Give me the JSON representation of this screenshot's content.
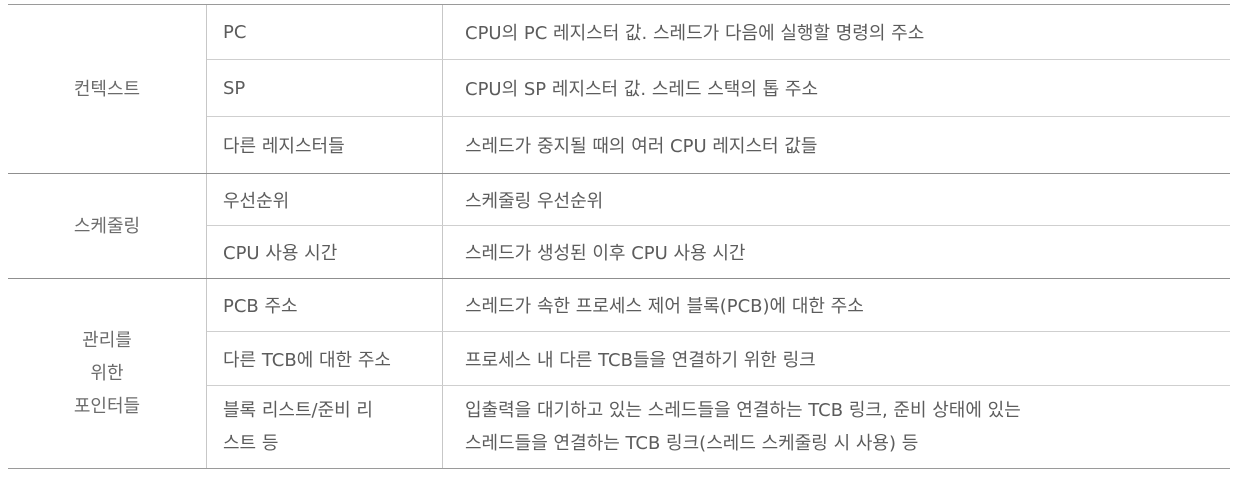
{
  "table": {
    "groups": [
      {
        "label": "컨텍스트",
        "rows": [
          {
            "field": "PC",
            "desc": "CPU의 PC 레지스터 값. 스레드가 다음에 실행할 명령의 주소"
          },
          {
            "field": "SP",
            "desc": "CPU의 SP 레지스터 값. 스레드 스택의 톱 주소"
          },
          {
            "field": "다른 레지스터들",
            "desc": "스레드가 중지될 때의 여러 CPU 레지스터 값들"
          }
        ]
      },
      {
        "label": "스케줄링",
        "rows": [
          {
            "field": "우선순위",
            "desc": "스케줄링 우선순위"
          },
          {
            "field": "CPU 사용 시간",
            "desc": "스레드가 생성된 이후 CPU 사용 시간"
          }
        ]
      },
      {
        "label_lines": [
          "관리를",
          "위한",
          "포인터들"
        ],
        "rows": [
          {
            "field": "PCB 주소",
            "desc": "스레드가 속한 프로세스 제어 블록(PCB)에 대한 주소"
          },
          {
            "field": "다른 TCB에 대한 주소",
            "desc": "프로세스 내 다른 TCB들을 연결하기 위한 링크"
          },
          {
            "field_lines": [
              "블록 리스트/준비 리",
              "스트 등"
            ],
            "desc_lines": [
              "입출력을 대기하고 있는 스레드들을 연결하는 TCB 링크, 준비 상태에 있는",
              "스레드들을 연결하는 TCB 링크(스레드 스케줄링 시 사용) 등"
            ]
          }
        ]
      }
    ]
  }
}
